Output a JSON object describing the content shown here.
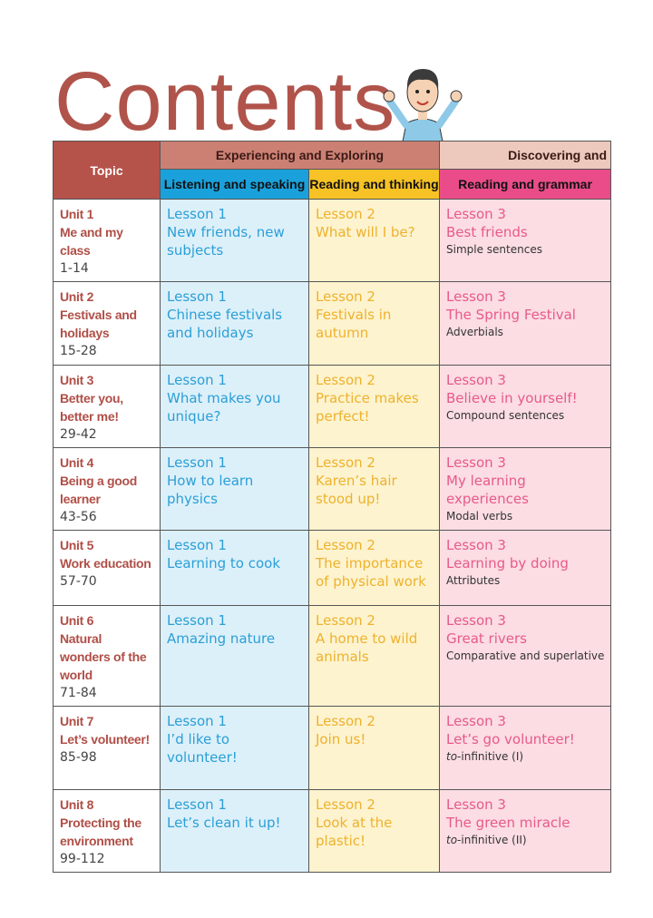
{
  "header": {
    "title": "Contents"
  },
  "table": {
    "headers": {
      "topic": "Topic",
      "groups": [
        "Experiencing and Exploring",
        "Discovering and"
      ],
      "columns": [
        "Listening and speaking",
        "Reading and thinking",
        "Reading and grammar"
      ]
    },
    "rows": [
      {
        "unit": "Unit 1",
        "title": "Me and my class",
        "pages": "1-14",
        "lessons": [
          {
            "label": "Lesson 1",
            "title": "New friends, new subjects"
          },
          {
            "label": "Lesson 2",
            "title": "What will I be?"
          },
          {
            "label": "Lesson 3",
            "title": "Best friends"
          }
        ],
        "grammar": [
          {
            "text": "Simple sentences"
          }
        ]
      },
      {
        "unit": "Unit 2",
        "title": "Festivals and holidays",
        "pages": "15-28",
        "lessons": [
          {
            "label": "Lesson 1",
            "title": "Chinese festivals and holidays"
          },
          {
            "label": "Lesson 2",
            "title": "Festivals in autumn"
          },
          {
            "label": "Lesson 3",
            "title": "The Spring Festival"
          }
        ],
        "grammar": [
          {
            "text": "Adverbials"
          }
        ]
      },
      {
        "unit": "Unit 3",
        "title": "Better you, better me!",
        "pages": "29-42",
        "lessons": [
          {
            "label": "Lesson 1",
            "title": "What makes you unique?"
          },
          {
            "label": "Lesson 2",
            "title": "Practice makes perfect!"
          },
          {
            "label": "Lesson 3",
            "title": "Believe in yourself!"
          }
        ],
        "grammar": [
          {
            "text": "Compound sentences"
          }
        ]
      },
      {
        "unit": "Unit 4",
        "title": "Being a good learner",
        "pages": "43-56",
        "lessons": [
          {
            "label": "Lesson 1",
            "title": "How to learn physics"
          },
          {
            "label": "Lesson 2",
            "title": "Karen’s hair stood up!"
          },
          {
            "label": "Lesson 3",
            "title": "My learning experiences"
          }
        ],
        "grammar": [
          {
            "text": "Modal verbs"
          }
        ]
      },
      {
        "unit": "Unit 5",
        "title": "Work education",
        "pages": "57-70",
        "lessons": [
          {
            "label": "Lesson 1",
            "title": "Learning to cook"
          },
          {
            "label": "Lesson 2",
            "title": "The importance of physical work"
          },
          {
            "label": "Lesson 3",
            "title": "Learning by doing"
          }
        ],
        "grammar": [
          {
            "text": "Attributes"
          }
        ]
      },
      {
        "unit": "Unit 6",
        "title": "Natural wonders of the world",
        "pages": "71-84",
        "lessons": [
          {
            "label": "Lesson 1",
            "title": "Amazing nature"
          },
          {
            "label": "Lesson 2",
            "title": "A home to wild animals"
          },
          {
            "label": "Lesson 3",
            "title": "Great rivers"
          }
        ],
        "grammar": [
          {
            "text": "Comparative and superlative"
          }
        ]
      },
      {
        "unit": "Unit 7",
        "title": "Let’s volunteer!",
        "pages": "85-98",
        "lessons": [
          {
            "label": "Lesson 1",
            "title": "I’d like to volunteer!"
          },
          {
            "label": "Lesson 2",
            "title": "Join us!"
          },
          {
            "label": "Lesson 3",
            "title": "Let’s go volunteer!"
          }
        ],
        "grammar": [
          {
            "text": "to",
            "italic": true
          },
          {
            "text": "-infinitive (I)"
          }
        ]
      },
      {
        "unit": "Unit 8",
        "title": "Protecting the environment",
        "pages": "99-112",
        "lessons": [
          {
            "label": "Lesson 1",
            "title": "Let’s clean it up!"
          },
          {
            "label": "Lesson 2",
            "title": "Look at the plastic!"
          },
          {
            "label": "Lesson 3",
            "title": "The green miracle"
          }
        ],
        "grammar": [
          {
            "text": "to",
            "italic": true
          },
          {
            "text": "-infinitive (II)"
          }
        ]
      }
    ]
  }
}
